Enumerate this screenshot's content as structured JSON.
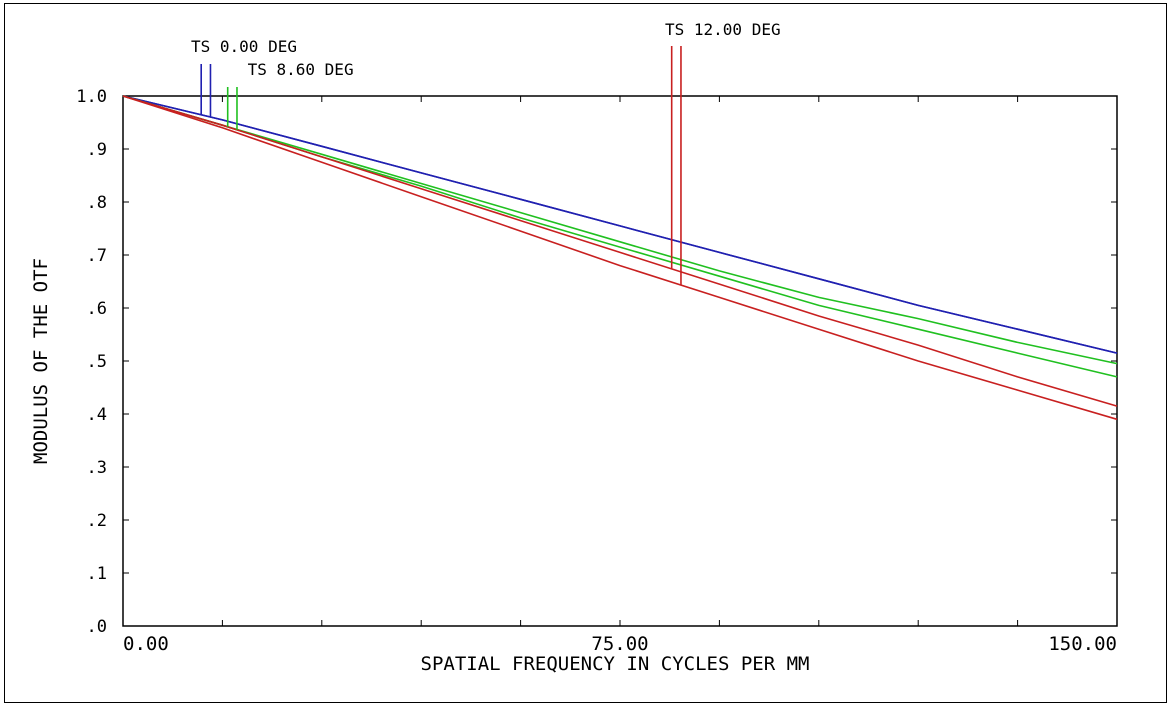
{
  "chart_data": {
    "type": "line",
    "title": "",
    "xlabel": "SPATIAL FREQUENCY IN CYCLES PER MM",
    "ylabel": "MODULUS OF THE OTF",
    "xlim": [
      0,
      150
    ],
    "ylim": [
      0,
      1.0
    ],
    "x_ticks": [
      0,
      75,
      150
    ],
    "x_tick_labels": [
      "0.00",
      "75.00",
      "150.00"
    ],
    "y_ticks": [
      0,
      0.1,
      0.2,
      0.3,
      0.4,
      0.5,
      0.6,
      0.7,
      0.8,
      0.9,
      1.0
    ],
    "y_tick_labels": [
      ".0",
      ".1",
      ".2",
      ".3",
      ".4",
      ".5",
      ".6",
      ".7",
      ".8",
      ".9",
      "1.0"
    ],
    "grid": false,
    "x": [
      0,
      15,
      30,
      45,
      60,
      75,
      90,
      105,
      120,
      135,
      150
    ],
    "series": [
      {
        "field": "TS 0.00 DEG",
        "component": "T",
        "color": "#2020b0",
        "values": [
          1.0,
          0.955,
          0.905,
          0.855,
          0.805,
          0.755,
          0.705,
          0.655,
          0.605,
          0.56,
          0.515
        ]
      },
      {
        "field": "TS 0.00 DEG",
        "component": "S",
        "color": "#2020b0",
        "values": [
          1.0,
          0.955,
          0.905,
          0.855,
          0.805,
          0.755,
          0.705,
          0.655,
          0.605,
          0.56,
          0.515
        ]
      },
      {
        "field": "TS 8.60 DEG",
        "component": "T",
        "color": "#20c020",
        "values": [
          1.0,
          0.945,
          0.89,
          0.835,
          0.78,
          0.725,
          0.67,
          0.62,
          0.58,
          0.535,
          0.495
        ]
      },
      {
        "field": "TS 8.60 DEG",
        "component": "S",
        "color": "#20c020",
        "values": [
          1.0,
          0.945,
          0.885,
          0.83,
          0.77,
          0.715,
          0.66,
          0.605,
          0.56,
          0.515,
          0.47
        ]
      },
      {
        "field": "TS 12.00 DEG",
        "component": "T",
        "color": "#c82020",
        "values": [
          1.0,
          0.945,
          0.885,
          0.825,
          0.765,
          0.705,
          0.645,
          0.585,
          0.53,
          0.47,
          0.415
        ]
      },
      {
        "field": "TS 12.00 DEG",
        "component": "S",
        "color": "#c82020",
        "values": [
          1.0,
          0.94,
          0.875,
          0.81,
          0.745,
          0.68,
          0.62,
          0.56,
          0.5,
          0.445,
          0.39
        ]
      }
    ],
    "legend": [
      {
        "label": "TS 0.00 DEG",
        "color": "#2020b0",
        "marker_x": 12.5
      },
      {
        "label": "TS 8.60 DEG",
        "color": "#20c020",
        "marker_x": 16.5
      },
      {
        "label": "TS 12.00 DEG",
        "color": "#c82020",
        "marker_x": 83.5
      }
    ]
  }
}
